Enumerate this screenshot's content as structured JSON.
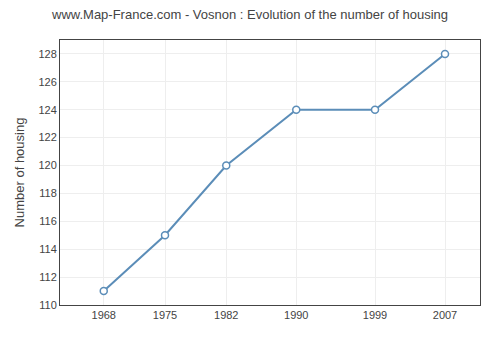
{
  "chart_data": {
    "type": "line",
    "title": "www.Map-France.com - Vosnon : Evolution of the number of housing",
    "ylabel": "Number of housing",
    "x": [
      1968,
      1975,
      1982,
      1990,
      1999,
      2007
    ],
    "values": [
      111,
      115,
      120,
      124,
      124,
      128
    ],
    "color": "#5b8db8",
    "marker": "circle",
    "line_style": "solid",
    "xlim": [
      1963,
      2011
    ],
    "xticks": [
      1968,
      1975,
      1982,
      1990,
      1999,
      2007
    ],
    "ylim": [
      110,
      129
    ],
    "yticks": [
      110,
      112,
      114,
      116,
      118,
      120,
      122,
      124,
      126,
      128
    ],
    "grid": true
  }
}
